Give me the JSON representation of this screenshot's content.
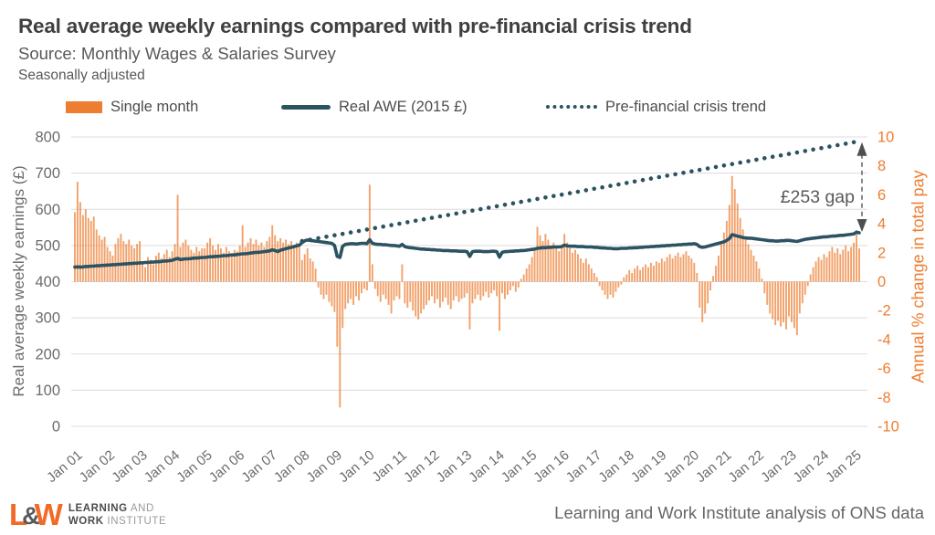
{
  "header": {
    "title": "Real average weekly earnings compared with pre-financial crisis trend",
    "source": "Source: Monthly Wages & Salaries Survey",
    "note": "Seasonally adjusted"
  },
  "legend": [
    {
      "label": "Single month",
      "swatch": "orange-bar"
    },
    {
      "label": "Real AWE (2015 £)",
      "swatch": "teal-line"
    },
    {
      "label": "Pre-financial crisis trend",
      "swatch": "teal-dotted"
    }
  ],
  "colors": {
    "orange": "#ED7D31",
    "teal": "#2C5362",
    "grid": "#DCDCDC",
    "axis_text": "#6B6B6B",
    "title_text": "#3F3F3F",
    "annotation_text": "#595959",
    "arrow": "#4F4F4F"
  },
  "annotation": {
    "label": "£253 gap"
  },
  "footer": {
    "logo": {
      "l": "L",
      "amp": "&",
      "w": "W"
    },
    "brand_line1_bold": "LEARNING",
    "brand_line1_light": " AND",
    "brand_line2_bold": "WORK",
    "brand_line2_light": " INSTITUTE",
    "credit": "Learning and Work Institute analysis of ONS data"
  },
  "chart_data": {
    "type": "bar",
    "subtype": "combo-bar-line",
    "x_start": "Jan 2001",
    "x_end": "Mar 2025",
    "x_tick_labels": [
      "Jan 01",
      "Jan 02",
      "Jan 03",
      "Jan 04",
      "Jan 05",
      "Jan 06",
      "Jan 07",
      "Jan 08",
      "Jan 09",
      "Jan 10",
      "Jan 11",
      "Jan 12",
      "Jan 13",
      "Jan 14",
      "Jan 15",
      "Jan 16",
      "Jan 17",
      "Jan 18",
      "Jan 19",
      "Jan 20",
      "Jan 21",
      "Jan 22",
      "Jan 23",
      "Jan 24",
      "Jan 25"
    ],
    "months_per_tick": 12,
    "left_axis": {
      "label": "Real average weekly earnings (£)",
      "min": 0,
      "max": 800,
      "tick_step": 100
    },
    "right_axis": {
      "label": "Annual % change in total pay",
      "min": -10,
      "max": 10,
      "tick_step": 2
    },
    "grid": true,
    "legend_position": "top",
    "series": [
      {
        "name": "Single month",
        "type": "bar",
        "axis": "right",
        "values": [
          4.8,
          6.9,
          5.5,
          4.6,
          5.0,
          4.4,
          4.2,
          4.5,
          3.6,
          3.2,
          2.9,
          3.1,
          2.4,
          2.1,
          1.8,
          2.6,
          3.0,
          3.3,
          2.8,
          2.6,
          2.9,
          2.5,
          2.3,
          2.6,
          2.8,
          1.4,
          1.0,
          1.7,
          1.5,
          1.2,
          1.8,
          2.0,
          1.6,
          1.9,
          2.2,
          1.7,
          2.1,
          2.6,
          6.0,
          2.4,
          2.7,
          2.9,
          2.5,
          2.2,
          2.0,
          2.4,
          2.1,
          2.3,
          2.3,
          2.7,
          3.0,
          2.5,
          2.2,
          2.6,
          2.3,
          2.0,
          2.4,
          2.1,
          1.9,
          2.2,
          2.1,
          2.5,
          3.9,
          2.4,
          2.7,
          3.0,
          2.6,
          2.9,
          2.5,
          2.7,
          2.4,
          2.8,
          3.1,
          3.9,
          3.2,
          2.8,
          3.0,
          2.7,
          2.9,
          2.6,
          2.8,
          2.5,
          2.7,
          2.4,
          1.5,
          1.9,
          2.3,
          1.6,
          1.4,
          0.9,
          -0.4,
          -0.9,
          -1.2,
          -0.9,
          -1.4,
          -1.7,
          -2.1,
          -4.5,
          -8.7,
          -3.2,
          -1.9,
          -1.5,
          -1.2,
          -1.6,
          -1.0,
          -1.3,
          -0.8,
          -0.5,
          -0.6,
          6.7,
          1.2,
          -0.5,
          -1.0,
          -1.4,
          -0.9,
          -1.2,
          -1.6,
          -2.2,
          -1.3,
          -1.0,
          -1.2,
          1.2,
          -1.5,
          -1.8,
          -1.4,
          -2.0,
          -2.4,
          -2.6,
          -2.2,
          -1.9,
          -1.6,
          -1.3,
          -1.0,
          -1.5,
          -1.2,
          -1.8,
          -1.4,
          -1.1,
          -1.6,
          -1.9,
          -1.3,
          -1.0,
          -1.4,
          -1.2,
          -1.1,
          -0.8,
          -3.3,
          -1.5,
          -1.2,
          -0.9,
          -1.3,
          -1.0,
          -0.7,
          -1.1,
          -0.8,
          -0.6,
          -1.0,
          -3.4,
          -0.8,
          -1.2,
          -0.9,
          -0.6,
          -0.3,
          -0.7,
          -0.4,
          0.2,
          0.5,
          0.9,
          1.2,
          1.7,
          2.2,
          3.8,
          3.2,
          2.8,
          3.3,
          2.9,
          2.5,
          2.7,
          2.3,
          2.1,
          2.4,
          3.3,
          2.7,
          2.3,
          2.0,
          2.2,
          1.9,
          1.6,
          1.3,
          1.6,
          1.2,
          0.9,
          0.6,
          0.3,
          -0.3,
          -0.6,
          -0.9,
          -1.2,
          -0.9,
          -1.1,
          -0.7,
          -0.4,
          -0.2,
          0.3,
          0.5,
          0.8,
          0.6,
          0.9,
          1.1,
          0.8,
          1.0,
          1.2,
          1.0,
          1.3,
          1.1,
          1.4,
          1.3,
          1.6,
          1.4,
          1.7,
          1.9,
          1.6,
          1.8,
          2.0,
          1.7,
          1.9,
          2.1,
          1.8,
          1.6,
          1.3,
          0.6,
          -1.8,
          -2.8,
          -2.2,
          -1.5,
          -0.6,
          0.4,
          1.1,
          1.8,
          2.6,
          3.4,
          4.2,
          5.3,
          7.3,
          6.4,
          5.4,
          4.4,
          3.6,
          3.0,
          2.6,
          2.2,
          1.8,
          1.4,
          0.9,
          0.2,
          -0.8,
          -1.6,
          -2.2,
          -2.6,
          -3.0,
          -2.7,
          -3.1,
          -2.8,
          -3.3,
          -2.4,
          -2.8,
          -3.2,
          -3.7,
          -2.2,
          -1.5,
          -0.9,
          -0.3,
          0.5,
          1.0,
          1.4,
          1.7,
          1.5,
          1.9,
          1.7,
          2.1,
          2.4,
          2.0,
          2.3,
          1.9,
          2.2,
          2.5,
          2.1,
          2.4,
          2.7,
          3.5,
          2.3
        ]
      },
      {
        "name": "Real AWE (2015 £)",
        "type": "line",
        "axis": "left",
        "values": [
          440,
          441,
          440,
          441,
          442,
          442,
          443,
          443,
          444,
          444,
          445,
          445,
          446,
          446,
          447,
          447,
          448,
          448,
          449,
          449,
          450,
          450,
          451,
          451,
          452,
          452,
          453,
          453,
          454,
          454,
          455,
          455,
          456,
          457,
          457,
          458,
          459,
          462,
          464,
          461,
          462,
          463,
          463,
          464,
          465,
          465,
          466,
          467,
          467,
          468,
          469,
          469,
          470,
          470,
          471,
          472,
          472,
          473,
          474,
          474,
          475,
          476,
          477,
          477,
          478,
          479,
          480,
          481,
          481,
          482,
          483,
          484,
          485,
          488,
          486,
          483,
          487,
          489,
          491,
          493,
          495,
          497,
          499,
          501,
          508,
          513,
          515,
          514,
          513,
          512,
          511,
          510,
          509,
          508,
          507,
          506,
          500,
          470,
          467,
          498,
          503,
          504,
          505,
          505,
          504,
          505,
          506,
          506,
          505,
          516,
          506,
          504,
          503,
          503,
          502,
          502,
          501,
          500,
          500,
          499,
          498,
          503,
          497,
          495,
          494,
          493,
          492,
          491,
          490,
          490,
          489,
          489,
          488,
          488,
          487,
          487,
          486,
          486,
          486,
          485,
          485,
          485,
          484,
          484,
          484,
          483,
          470,
          483,
          484,
          484,
          484,
          483,
          483,
          483,
          484,
          484,
          483,
          468,
          481,
          483,
          483,
          484,
          484,
          485,
          485,
          486,
          486,
          487,
          488,
          489,
          490,
          492,
          493,
          494,
          494,
          495,
          495,
          496,
          496,
          496,
          497,
          501,
          499,
          498,
          498,
          498,
          497,
          497,
          497,
          496,
          496,
          496,
          495,
          495,
          494,
          493,
          493,
          492,
          492,
          491,
          491,
          491,
          492,
          492,
          492,
          493,
          493,
          494,
          494,
          495,
          495,
          496,
          496,
          497,
          497,
          498,
          498,
          499,
          499,
          500,
          500,
          501,
          501,
          502,
          502,
          503,
          503,
          504,
          504,
          505,
          503,
          497,
          495,
          496,
          498,
          500,
          502,
          504,
          506,
          508,
          510,
          514,
          519,
          530,
          528,
          526,
          524,
          522,
          521,
          520,
          520,
          519,
          518,
          517,
          516,
          515,
          514,
          513,
          513,
          512,
          512,
          513,
          513,
          514,
          514,
          513,
          512,
          511,
          513,
          515,
          517,
          518,
          519,
          520,
          521,
          522,
          523,
          524,
          524,
          525,
          526,
          526,
          527,
          528,
          528,
          529,
          530,
          531,
          532,
          537,
          535
        ]
      },
      {
        "name": "Pre-financial crisis trend",
        "type": "dotted-line",
        "axis": "left",
        "start_month": "Jan 2008",
        "start_index": 84,
        "start_value": 512,
        "end_value": 788
      }
    ],
    "gap_annotation": {
      "label": "£253 gap",
      "value_gbp": 253,
      "at": "Mar 2025",
      "from_value": 535,
      "to_value": 788
    }
  }
}
